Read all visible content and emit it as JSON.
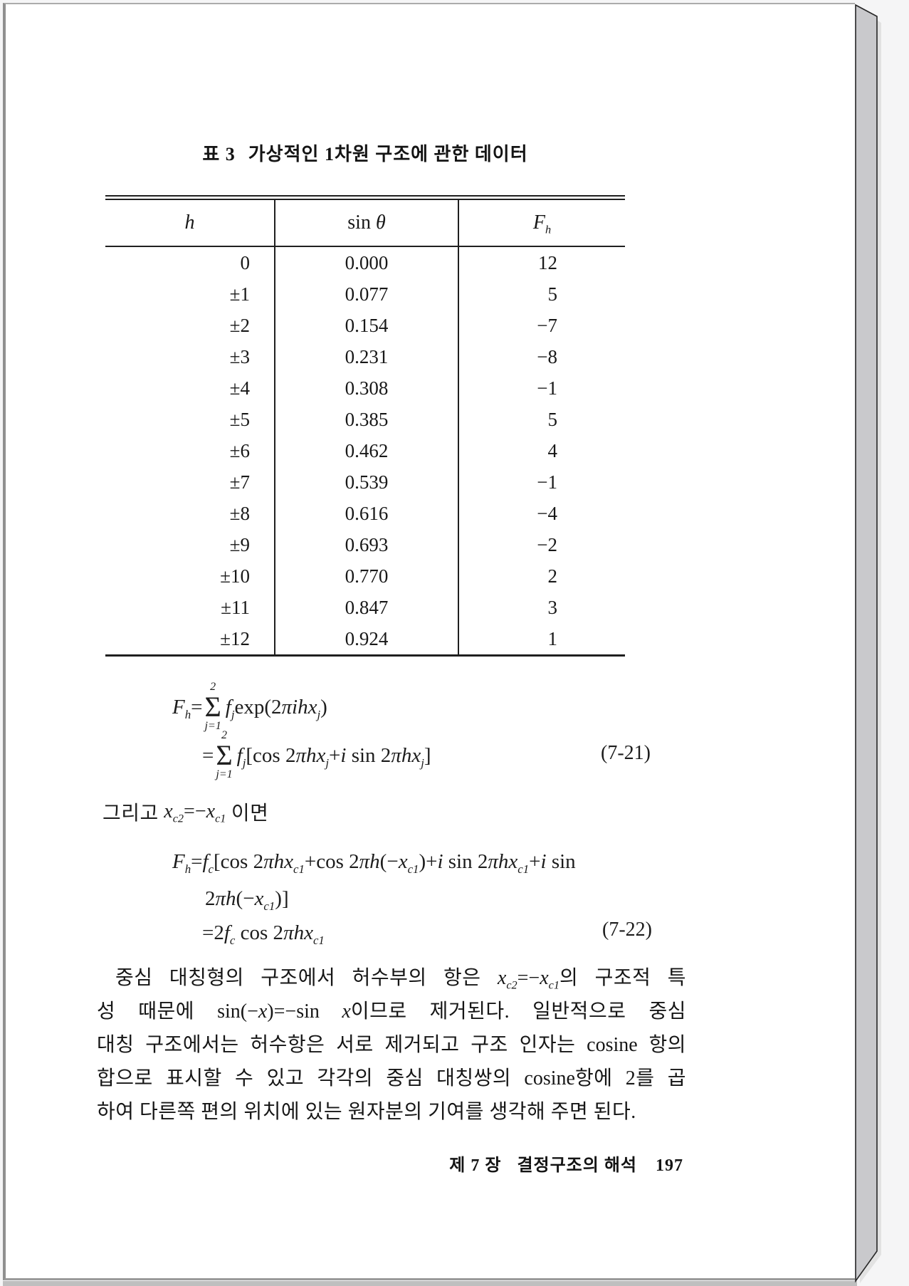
{
  "page": {
    "title_label": "표 3",
    "title_text": "가상적인 1차원 구조에 관한 데이터",
    "footer": {
      "chapter": "제 7 장",
      "section": "결정구조의 해석",
      "page_number": "197"
    }
  },
  "colors": {
    "ink": "#1c1c1c",
    "paper": "#ffffff",
    "book_edge": "#c9c9cc",
    "edge_shadow": "#e2e2e2",
    "backdrop": "#f5f5f6",
    "table_rule": "#1f1f1f"
  },
  "table": {
    "headers": {
      "h": [
        {
          "t": "h",
          "s": "it"
        }
      ],
      "sin_theta": [
        {
          "t": "sin ",
          "s": "rm"
        },
        {
          "t": "θ",
          "s": "it"
        }
      ],
      "f_h": [
        {
          "t": "F",
          "s": "it"
        },
        {
          "t": "h",
          "s": "sub"
        }
      ]
    },
    "rows": [
      {
        "h": "0",
        "sin_theta": "0.000",
        "f_h": "12"
      },
      {
        "h": "±1",
        "sin_theta": "0.077",
        "f_h": "5"
      },
      {
        "h": "±2",
        "sin_theta": "0.154",
        "f_h": "−7"
      },
      {
        "h": "±3",
        "sin_theta": "0.231",
        "f_h": "−8"
      },
      {
        "h": "±4",
        "sin_theta": "0.308",
        "f_h": "−1"
      },
      {
        "h": "±5",
        "sin_theta": "0.385",
        "f_h": "5"
      },
      {
        "h": "±6",
        "sin_theta": "0.462",
        "f_h": "4"
      },
      {
        "h": "±7",
        "sin_theta": "0.539",
        "f_h": "−1"
      },
      {
        "h": "±8",
        "sin_theta": "0.616",
        "f_h": "−4"
      },
      {
        "h": "±9",
        "sin_theta": "0.693",
        "f_h": "−2"
      },
      {
        "h": "±10",
        "sin_theta": "0.770",
        "f_h": "2"
      },
      {
        "h": "±11",
        "sin_theta": "0.847",
        "f_h": "3"
      },
      {
        "h": "±12",
        "sin_theta": "0.924",
        "f_h": "1"
      }
    ]
  },
  "equations": {
    "eq721": {
      "l1": [
        {
          "t": "F",
          "s": "it"
        },
        {
          "t": "h",
          "s": "sub"
        },
        {
          "t": "=",
          "s": "rm"
        },
        {
          "s": "sum",
          "sup": "2",
          "sub": "j=1"
        },
        {
          "t": "f",
          "s": "it"
        },
        {
          "t": "j",
          "s": "sub"
        },
        {
          "t": "exp(2",
          "s": "rm"
        },
        {
          "t": "πihx",
          "s": "it"
        },
        {
          "t": "j",
          "s": "sub"
        },
        {
          "t": ")",
          "s": "rm"
        }
      ],
      "l2": [
        {
          "t": "=",
          "s": "rm"
        },
        {
          "s": "sum",
          "sup": "2",
          "sub": "j=1"
        },
        {
          "t": "f",
          "s": "it"
        },
        {
          "t": "j",
          "s": "sub"
        },
        {
          "t": "[cos 2",
          "s": "rm"
        },
        {
          "t": "πhx",
          "s": "it"
        },
        {
          "t": "j",
          "s": "sub"
        },
        {
          "t": "+",
          "s": "rm"
        },
        {
          "t": "i",
          "s": "it"
        },
        {
          "t": " sin 2",
          "s": "rm"
        },
        {
          "t": "πhx",
          "s": "it"
        },
        {
          "t": "j",
          "s": "sub"
        },
        {
          "t": "]",
          "s": "rm"
        }
      ],
      "label": "(7-21)"
    },
    "between": [
      {
        "t": "그리고 ",
        "s": "kr"
      },
      {
        "t": "x",
        "s": "it"
      },
      {
        "t": "c2",
        "s": "sub"
      },
      {
        "t": "=−",
        "s": "rm"
      },
      {
        "t": "x",
        "s": "it"
      },
      {
        "t": "c1",
        "s": "sub"
      },
      {
        "t": " 이면",
        "s": "kr"
      }
    ],
    "eq722": {
      "l1": [
        {
          "t": "F",
          "s": "it"
        },
        {
          "t": "h",
          "s": "sub"
        },
        {
          "t": "=",
          "s": "rm"
        },
        {
          "t": "f",
          "s": "it"
        },
        {
          "t": "c",
          "s": "sub"
        },
        {
          "t": "[cos 2",
          "s": "rm"
        },
        {
          "t": "πhx",
          "s": "it"
        },
        {
          "t": "c1",
          "s": "sub"
        },
        {
          "t": "+cos 2",
          "s": "rm"
        },
        {
          "t": "πh",
          "s": "it"
        },
        {
          "t": "(−",
          "s": "rm"
        },
        {
          "t": "x",
          "s": "it"
        },
        {
          "t": "c1",
          "s": "sub"
        },
        {
          "t": ")+",
          "s": "rm"
        },
        {
          "t": "i",
          "s": "it"
        },
        {
          "t": " sin 2",
          "s": "rm"
        },
        {
          "t": "πhx",
          "s": "it"
        },
        {
          "t": "c1",
          "s": "sub"
        },
        {
          "t": "+",
          "s": "rm"
        },
        {
          "t": "i",
          "s": "it"
        },
        {
          "t": " sin",
          "s": "rm"
        }
      ],
      "l2": [
        {
          "t": "2",
          "s": "rm"
        },
        {
          "t": "πh",
          "s": "it"
        },
        {
          "t": "(−",
          "s": "rm"
        },
        {
          "t": "x",
          "s": "it"
        },
        {
          "t": "c1",
          "s": "sub"
        },
        {
          "t": ")]",
          "s": "rm"
        }
      ],
      "l3": [
        {
          "t": "=2",
          "s": "rm"
        },
        {
          "t": "f",
          "s": "it"
        },
        {
          "t": "c",
          "s": "sub"
        },
        {
          "t": " cos 2",
          "s": "rm"
        },
        {
          "t": "πhx",
          "s": "it"
        },
        {
          "t": "c1",
          "s": "sub"
        }
      ],
      "label": "(7-22)"
    }
  },
  "paragraph": {
    "lines": [
      [
        {
          "t": "중심 대칭형의 구조에서 허수부의 항은 ",
          "s": "kr"
        },
        {
          "t": "x",
          "s": "it"
        },
        {
          "t": "c2",
          "s": "sub"
        },
        {
          "t": "=−",
          "s": "rm"
        },
        {
          "t": "x",
          "s": "it"
        },
        {
          "t": "c1",
          "s": "sub"
        },
        {
          "t": "의 구조적 특",
          "s": "kr"
        }
      ],
      [
        {
          "t": "성 때문에 ",
          "s": "kr"
        },
        {
          "t": "sin(−",
          "s": "rm"
        },
        {
          "t": "x",
          "s": "it"
        },
        {
          "t": ")=−sin ",
          "s": "rm"
        },
        {
          "t": "x",
          "s": "it"
        },
        {
          "t": "이므로 제거된다. 일반적으로 중심",
          "s": "kr"
        }
      ],
      [
        {
          "t": "대칭 구조에서는 허수항은 서로 제거되고 구조 인자는 ",
          "s": "kr"
        },
        {
          "t": "cosine",
          "s": "rm"
        },
        {
          "t": " 항의",
          "s": "kr"
        }
      ],
      [
        {
          "t": "합으로 표시할 수 있고 각각의 중심 대칭쌍의 ",
          "s": "kr"
        },
        {
          "t": "cosine",
          "s": "rm"
        },
        {
          "t": "항에 2를 곱",
          "s": "kr"
        }
      ],
      [
        {
          "t": "하여 다른쪽 편의 위치에 있는 원자분의 기여를 생각해 주면 된다.",
          "s": "kr"
        }
      ]
    ]
  }
}
